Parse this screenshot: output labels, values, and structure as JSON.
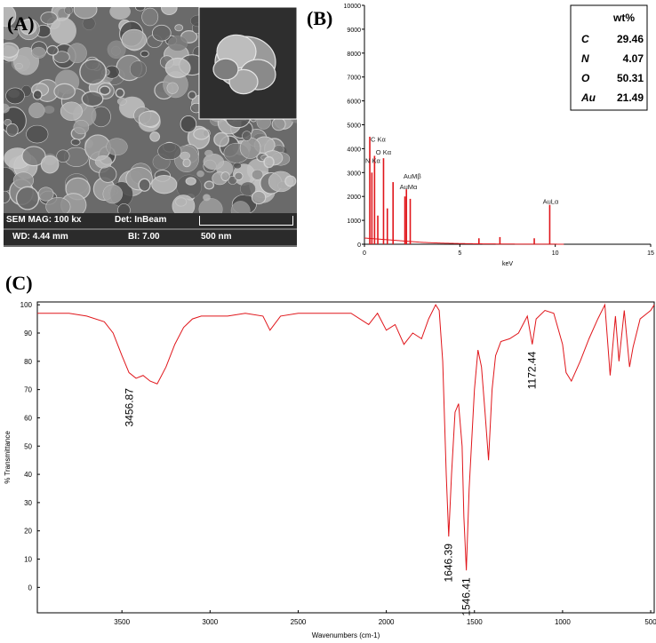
{
  "panels": {
    "a_label": "(A)",
    "b_label": "(B)",
    "c_label": "(C)"
  },
  "sem": {
    "mag": "SEM MAG: 100 kx",
    "det": "Det: InBeam",
    "wd": "WD: 4.44 mm",
    "bi": "BI: 7.00",
    "scale": "500 nm"
  },
  "colors": {
    "spectrum": "#e0161b",
    "axis": "#000000"
  },
  "chart_data": [
    {
      "type": "bar",
      "panel": "B",
      "xlabel": "keV",
      "ylabel": "",
      "xlim": [
        0,
        15
      ],
      "ylim": [
        0,
        10000
      ],
      "x_ticks": [
        0,
        5,
        10,
        15
      ],
      "y_ticks": [
        0,
        1000,
        2000,
        3000,
        4000,
        5000,
        6000,
        7000,
        8000,
        9000,
        10000
      ],
      "peaks": [
        {
          "x": 0.28,
          "y": 4500
        },
        {
          "x": 0.39,
          "y": 3000
        },
        {
          "x": 0.53,
          "y": 3700
        },
        {
          "x": 0.7,
          "y": 1200
        },
        {
          "x": 1.0,
          "y": 3600
        },
        {
          "x": 1.2,
          "y": 1500
        },
        {
          "x": 1.5,
          "y": 2600
        },
        {
          "x": 2.12,
          "y": 2000
        },
        {
          "x": 2.2,
          "y": 2300
        },
        {
          "x": 2.4,
          "y": 1900
        },
        {
          "x": 6.0,
          "y": 250
        },
        {
          "x": 7.1,
          "y": 300
        },
        {
          "x": 8.9,
          "y": 250
        },
        {
          "x": 9.71,
          "y": 1650
        }
      ],
      "peak_labels": [
        {
          "text": "C Kα",
          "x": 0.28,
          "y": 4300
        },
        {
          "text": "O Kα",
          "x": 0.55,
          "y": 3750
        },
        {
          "text": "N Kα",
          "x": 0.0,
          "y": 3400
        },
        {
          "text": "AuMβ",
          "x": 2.0,
          "y": 2750
        },
        {
          "text": "AuMα",
          "x": 1.8,
          "y": 2300
        },
        {
          "text": "AuLα",
          "x": 9.3,
          "y": 1700
        }
      ],
      "table": {
        "header": "wt%",
        "rows": [
          {
            "element": "C",
            "value": "29.46"
          },
          {
            "element": "N",
            "value": "4.07"
          },
          {
            "element": "O",
            "value": "50.31"
          },
          {
            "element": "Au",
            "value": "21.49"
          }
        ]
      }
    },
    {
      "type": "line",
      "panel": "C",
      "xlabel": "Wavenumbers (cm-1)",
      "ylabel": "% Transmittance",
      "xlim": [
        3980,
        480
      ],
      "ylim": [
        -9,
        101
      ],
      "x_ticks": [
        3500,
        3000,
        2500,
        2000,
        1500,
        1000,
        500
      ],
      "y_ticks": [
        0,
        10,
        20,
        30,
        40,
        50,
        60,
        70,
        80,
        90,
        100
      ],
      "x": [
        3980,
        3900,
        3800,
        3700,
        3600,
        3550,
        3500,
        3460,
        3420,
        3380,
        3340,
        3300,
        3250,
        3200,
        3150,
        3100,
        3050,
        3000,
        2950,
        2900,
        2800,
        2700,
        2660,
        2600,
        2500,
        2400,
        2300,
        2200,
        2100,
        2050,
        2000,
        1950,
        1900,
        1850,
        1800,
        1760,
        1720,
        1700,
        1680,
        1660,
        1646,
        1630,
        1610,
        1590,
        1570,
        1560,
        1546,
        1530,
        1500,
        1480,
        1460,
        1440,
        1420,
        1400,
        1380,
        1350,
        1300,
        1250,
        1200,
        1172,
        1150,
        1100,
        1050,
        1000,
        980,
        950,
        900,
        850,
        800,
        760,
        730,
        700,
        680,
        650,
        620,
        600,
        560,
        520,
        500,
        480
      ],
      "y": [
        97,
        97,
        97,
        96,
        94,
        90,
        82,
        76,
        74,
        75,
        73,
        72,
        78,
        86,
        92,
        95,
        96,
        96,
        96,
        96,
        97,
        96,
        91,
        96,
        97,
        97,
        97,
        97,
        93,
        97,
        91,
        93,
        86,
        90,
        88,
        95,
        100,
        98,
        80,
        40,
        18,
        40,
        62,
        65,
        50,
        25,
        6,
        35,
        70,
        84,
        78,
        62,
        45,
        70,
        82,
        87,
        88,
        90,
        96,
        86,
        95,
        98,
        97,
        86,
        76,
        73,
        80,
        88,
        95,
        100,
        75,
        96,
        80,
        98,
        78,
        85,
        95,
        97,
        98,
        100
      ],
      "annotations": [
        {
          "text": "3456.87",
          "x": 3456.87,
          "y": 73
        },
        {
          "text": "1646.39",
          "x": 1646.39,
          "y": 18
        },
        {
          "text": "1546.41",
          "x": 1546.41,
          "y": 6
        },
        {
          "text": "1172.44",
          "x": 1172.44,
          "y": 86
        }
      ]
    }
  ]
}
